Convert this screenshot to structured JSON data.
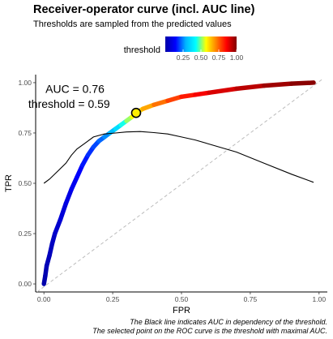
{
  "title": "Receiver-operator curve (incl. AUC line)",
  "subtitle": "Thresholds are sampled from the predicted values",
  "caption_lines": [
    "The Black line indicates AUC in dependency of the threshold.",
    "The selected point on the ROC curve is the threshold with maximal AUC."
  ],
  "chart_data": {
    "type": "line",
    "xlabel": "FPR",
    "ylabel": "TPR",
    "xlim": [
      -0.03,
      1.03
    ],
    "ylim": [
      -0.04,
      1.04
    ],
    "x_ticks": [
      0.0,
      0.25,
      0.5,
      0.75,
      1.0
    ],
    "x_tick_labels": [
      "0.00",
      "0.25",
      "0.50",
      "0.75",
      "1.00"
    ],
    "y_ticks": [
      0.0,
      0.25,
      0.5,
      0.75,
      1.0
    ],
    "y_tick_labels": [
      "0.00",
      "0.25",
      "0.50",
      "0.75",
      "1.00"
    ],
    "grid": false,
    "series": [
      {
        "kind": "roc-curve-colored-by-threshold",
        "points": [
          {
            "x": 0.0,
            "y": 0.0,
            "threshold": 0.0
          },
          {
            "x": 0.005,
            "y": 0.04,
            "threshold": 0.01
          },
          {
            "x": 0.01,
            "y": 0.09,
            "threshold": 0.02
          },
          {
            "x": 0.02,
            "y": 0.14,
            "threshold": 0.03
          },
          {
            "x": 0.03,
            "y": 0.2,
            "threshold": 0.04
          },
          {
            "x": 0.04,
            "y": 0.25,
            "threshold": 0.05
          },
          {
            "x": 0.06,
            "y": 0.32,
            "threshold": 0.07
          },
          {
            "x": 0.08,
            "y": 0.4,
            "threshold": 0.09
          },
          {
            "x": 0.1,
            "y": 0.47,
            "threshold": 0.11
          },
          {
            "x": 0.12,
            "y": 0.53,
            "threshold": 0.13
          },
          {
            "x": 0.14,
            "y": 0.59,
            "threshold": 0.15
          },
          {
            "x": 0.16,
            "y": 0.64,
            "threshold": 0.17
          },
          {
            "x": 0.18,
            "y": 0.68,
            "threshold": 0.19
          },
          {
            "x": 0.2,
            "y": 0.71,
            "threshold": 0.21
          },
          {
            "x": 0.22,
            "y": 0.73,
            "threshold": 0.24
          },
          {
            "x": 0.24,
            "y": 0.75,
            "threshold": 0.27
          },
          {
            "x": 0.26,
            "y": 0.77,
            "threshold": 0.33
          },
          {
            "x": 0.28,
            "y": 0.79,
            "threshold": 0.4
          },
          {
            "x": 0.3,
            "y": 0.81,
            "threshold": 0.48
          },
          {
            "x": 0.32,
            "y": 0.83,
            "threshold": 0.55
          },
          {
            "x": 0.335,
            "y": 0.85,
            "threshold": 0.59
          },
          {
            "x": 0.36,
            "y": 0.87,
            "threshold": 0.64
          },
          {
            "x": 0.4,
            "y": 0.89,
            "threshold": 0.7
          },
          {
            "x": 0.45,
            "y": 0.91,
            "threshold": 0.76
          },
          {
            "x": 0.5,
            "y": 0.93,
            "threshold": 0.81
          },
          {
            "x": 0.55,
            "y": 0.94,
            "threshold": 0.85
          },
          {
            "x": 0.6,
            "y": 0.95,
            "threshold": 0.88
          },
          {
            "x": 0.7,
            "y": 0.97,
            "threshold": 0.92
          },
          {
            "x": 0.8,
            "y": 0.985,
            "threshold": 0.95
          },
          {
            "x": 0.9,
            "y": 0.995,
            "threshold": 0.98
          },
          {
            "x": 0.98,
            "y": 1.0,
            "threshold": 1.0
          }
        ]
      },
      {
        "kind": "auc-line",
        "color": "#000000",
        "x": [
          0.0,
          0.02,
          0.05,
          0.08,
          0.1,
          0.12,
          0.15,
          0.18,
          0.22,
          0.26,
          0.3,
          0.35,
          0.4,
          0.45,
          0.5,
          0.55,
          0.6,
          0.7,
          0.8,
          0.9,
          0.98
        ],
        "y": [
          0.5,
          0.52,
          0.56,
          0.6,
          0.64,
          0.67,
          0.7,
          0.73,
          0.745,
          0.75,
          0.755,
          0.757,
          0.752,
          0.745,
          0.73,
          0.715,
          0.695,
          0.655,
          0.6,
          0.545,
          0.505
        ]
      },
      {
        "kind": "diagonal-reference",
        "color": "#bdbdbd",
        "x": [
          0.0,
          1.0
        ],
        "y": [
          0.0,
          1.0
        ]
      }
    ],
    "selected_point": {
      "x": 0.335,
      "y": 0.85,
      "threshold": 0.59
    },
    "annotations": [
      "AUC = 0.76",
      "threshold = 0.59"
    ],
    "legend": {
      "title": "threshold",
      "placement": "top",
      "range": [
        0.0,
        1.0
      ],
      "ticks": [
        0.25,
        0.5,
        0.75,
        1.0
      ],
      "tick_labels": [
        "0.25",
        "0.50",
        "0.75",
        "1.00"
      ],
      "colors": [
        "#0000a8",
        "#0000ff",
        "#00b4ff",
        "#00ffff",
        "#ffff00",
        "#ff8000",
        "#ff0000",
        "#800000"
      ]
    }
  }
}
